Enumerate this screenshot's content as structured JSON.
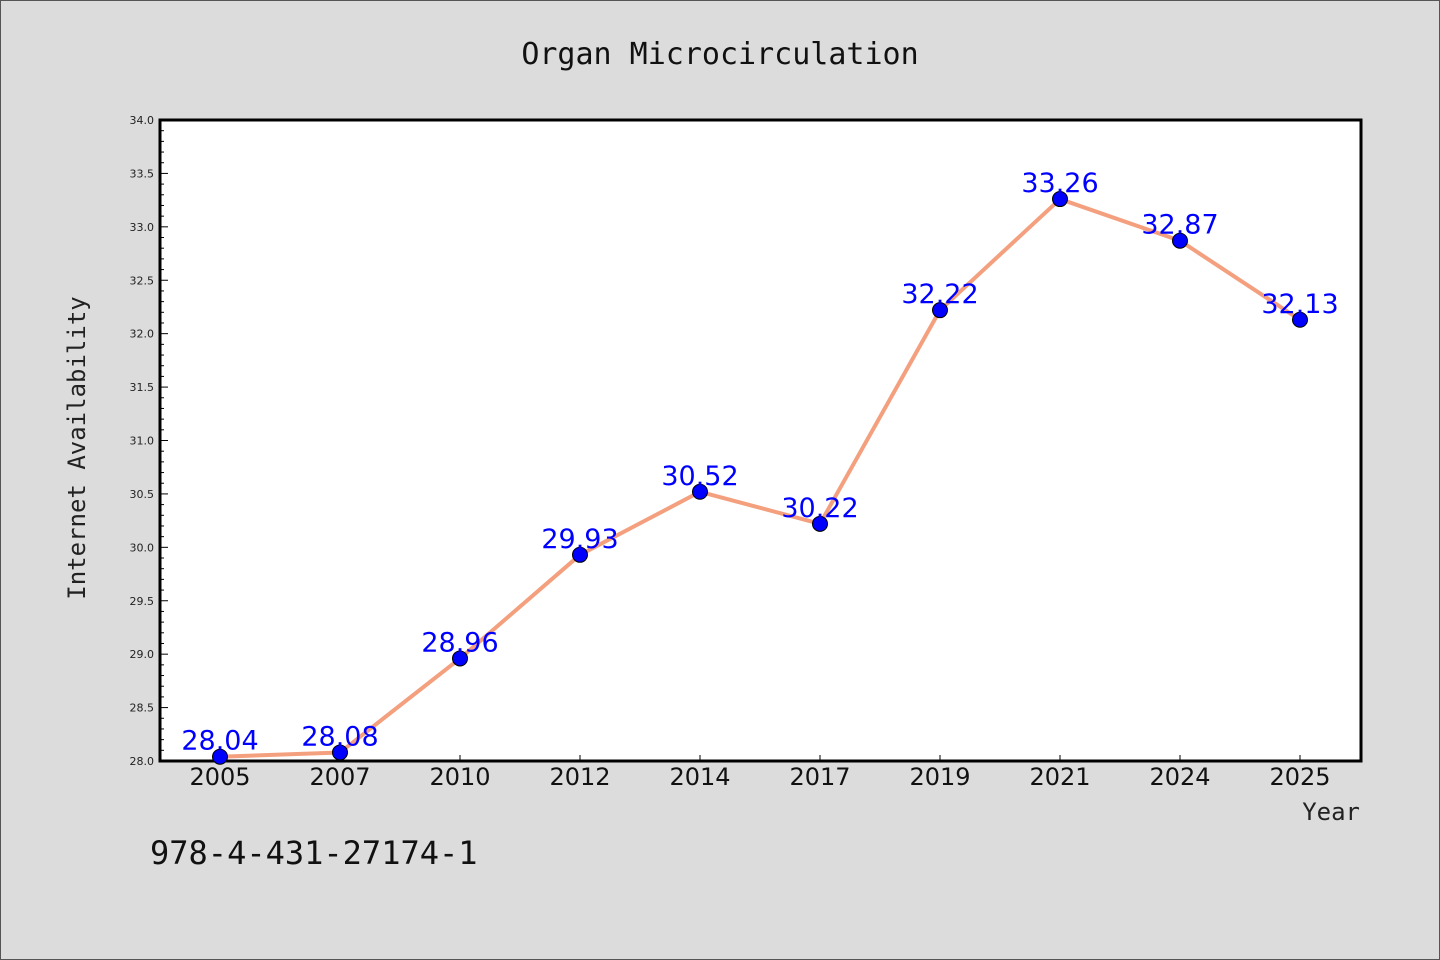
{
  "chart_data": {
    "type": "line",
    "title": "Organ Microcirculation",
    "xlabel": "Year",
    "ylabel": "Internet Availability",
    "categories": [
      "2005",
      "2007",
      "2010",
      "2012",
      "2014",
      "2017",
      "2019",
      "2021",
      "2024",
      "2025"
    ],
    "series": [
      {
        "values": [
          28.04,
          28.08,
          28.96,
          29.93,
          30.52,
          30.22,
          32.22,
          33.26,
          32.87,
          32.13
        ]
      }
    ],
    "value_labels": [
      "28.04",
      "28.08",
      "28.96",
      "29.93",
      "30.52",
      "30.22",
      "32.22",
      "33.26",
      "32.87",
      "32.13"
    ],
    "ylim": [
      28.0,
      34.0
    ],
    "yticks": [
      "28.0",
      "28.5",
      "29.0",
      "29.5",
      "30.0",
      "30.5",
      "31.0",
      "31.5",
      "32.0",
      "32.5",
      "33.0",
      "33.5",
      "34.0"
    ],
    "grid": false,
    "legend": "none",
    "line_color": "#f4a07e",
    "marker_color": "#0000ff",
    "label_color": "#0000ff",
    "footnote": "978-4-431-27174-1"
  }
}
